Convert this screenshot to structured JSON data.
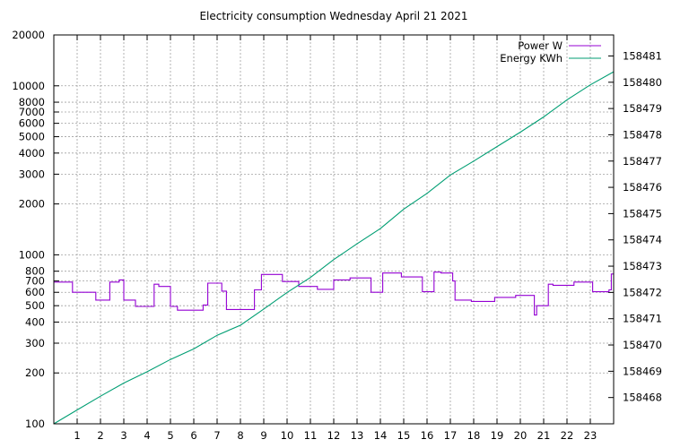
{
  "chart_data": {
    "type": "line",
    "title": "Electricity consumption Wednesday April 21 2021",
    "x": {
      "range": [
        0,
        24
      ],
      "ticks": [
        1,
        2,
        3,
        4,
        5,
        6,
        7,
        8,
        9,
        10,
        11,
        12,
        13,
        14,
        15,
        16,
        17,
        18,
        19,
        20,
        21,
        22,
        23
      ]
    },
    "y_left": {
      "scale": "log",
      "range": [
        100,
        20000
      ],
      "ticks": [
        100,
        200,
        300,
        400,
        500,
        600,
        700,
        800,
        1000,
        2000,
        3000,
        4000,
        5000,
        6000,
        7000,
        8000,
        10000,
        20000
      ]
    },
    "y_right": {
      "range": [
        158467.0,
        158481.8
      ],
      "ticks": [
        158468,
        158469,
        158470,
        158471,
        158472,
        158473,
        158474,
        158475,
        158476,
        158477,
        158478,
        158479,
        158480,
        158481
      ]
    },
    "grid": true,
    "legend_position": "top-right",
    "series": [
      {
        "name": "Power W",
        "axis": "left",
        "color": "#9400d3",
        "step": true,
        "points": [
          [
            0.0,
            690
          ],
          [
            0.8,
            600
          ],
          [
            1.8,
            540
          ],
          [
            2.4,
            690
          ],
          [
            2.8,
            710
          ],
          [
            3.0,
            540
          ],
          [
            3.5,
            495
          ],
          [
            4.3,
            670
          ],
          [
            4.5,
            650
          ],
          [
            5.0,
            495
          ],
          [
            5.3,
            470
          ],
          [
            6.4,
            505
          ],
          [
            6.6,
            680
          ],
          [
            7.2,
            610
          ],
          [
            7.4,
            475
          ],
          [
            8.6,
            620
          ],
          [
            8.9,
            765
          ],
          [
            9.8,
            695
          ],
          [
            10.5,
            650
          ],
          [
            11.3,
            625
          ],
          [
            12.0,
            710
          ],
          [
            12.7,
            730
          ],
          [
            13.6,
            600
          ],
          [
            14.1,
            780
          ],
          [
            14.9,
            740
          ],
          [
            15.8,
            605
          ],
          [
            16.3,
            790
          ],
          [
            16.6,
            780
          ],
          [
            17.1,
            700
          ],
          [
            17.2,
            540
          ],
          [
            17.9,
            530
          ],
          [
            18.9,
            560
          ],
          [
            19.8,
            575
          ],
          [
            20.6,
            440
          ],
          [
            20.7,
            500
          ],
          [
            21.2,
            670
          ],
          [
            21.4,
            660
          ],
          [
            22.3,
            690
          ],
          [
            23.1,
            605
          ],
          [
            23.8,
            620
          ],
          [
            23.9,
            770
          ],
          [
            24.0,
            770
          ]
        ]
      },
      {
        "name": "Energy KWh",
        "axis": "right",
        "color": "#009e73",
        "points": [
          [
            0.0,
            158467.0
          ],
          [
            1.0,
            158467.53
          ],
          [
            2.0,
            158468.05
          ],
          [
            3.0,
            158468.55
          ],
          [
            4.0,
            158468.98
          ],
          [
            5.0,
            158469.45
          ],
          [
            6.0,
            158469.85
          ],
          [
            7.0,
            158470.37
          ],
          [
            8.0,
            158470.75
          ],
          [
            9.0,
            158471.37
          ],
          [
            10.0,
            158472.0
          ],
          [
            11.0,
            158472.57
          ],
          [
            12.0,
            158473.25
          ],
          [
            13.0,
            158473.85
          ],
          [
            14.0,
            158474.43
          ],
          [
            15.0,
            158475.17
          ],
          [
            16.0,
            158475.77
          ],
          [
            17.0,
            158476.47
          ],
          [
            18.0,
            158477.0
          ],
          [
            19.0,
            158477.55
          ],
          [
            20.0,
            158478.1
          ],
          [
            21.0,
            158478.68
          ],
          [
            22.0,
            158479.33
          ],
          [
            23.0,
            158479.9
          ],
          [
            24.0,
            158480.4
          ]
        ]
      }
    ]
  }
}
